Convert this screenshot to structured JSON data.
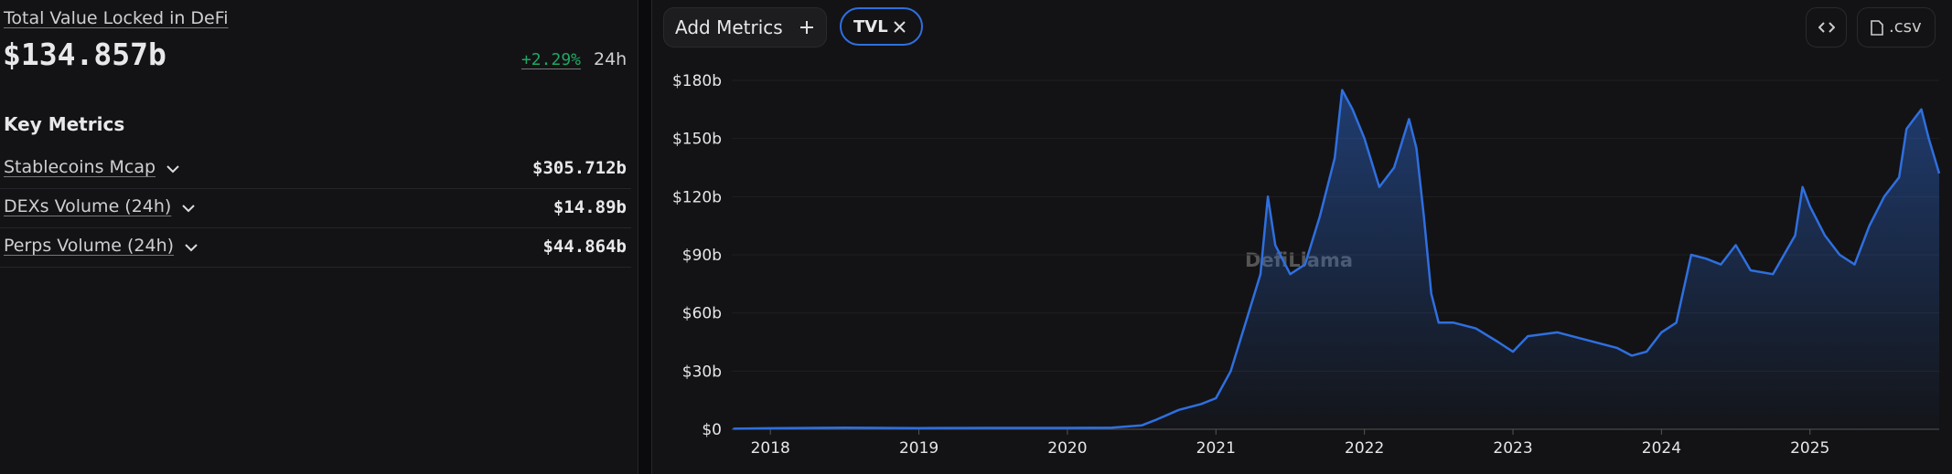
{
  "sidebar": {
    "title": "Total Value Locked in DeFi",
    "value": "$134.857b",
    "change": "+2.29%",
    "period": "24h",
    "section": "Key Metrics",
    "metrics": [
      {
        "name": "Stablecoins Mcap",
        "value": "$305.712b"
      },
      {
        "name": "DEXs Volume (24h)",
        "value": "$14.89b"
      },
      {
        "name": "Perps Volume (24h)",
        "value": "$44.864b"
      }
    ]
  },
  "toolbar": {
    "add_button": "Add Metrics",
    "csv_button": ".csv"
  },
  "chart_data": {
    "type": "area",
    "watermark": "DefiLlama",
    "x": [
      2017.75,
      2018.0,
      2018.5,
      2019.0,
      2019.5,
      2020.0,
      2020.3,
      2020.5,
      2020.6,
      2020.75,
      2020.9,
      2021.0,
      2021.1,
      2021.2,
      2021.3,
      2021.35,
      2021.4,
      2021.5,
      2021.6,
      2021.7,
      2021.8,
      2021.85,
      2021.92,
      2022.0,
      2022.1,
      2022.2,
      2022.3,
      2022.35,
      2022.4,
      2022.45,
      2022.5,
      2022.6,
      2022.75,
      2022.9,
      2023.0,
      2023.1,
      2023.3,
      2023.5,
      2023.7,
      2023.8,
      2023.9,
      2024.0,
      2024.1,
      2024.2,
      2024.3,
      2024.4,
      2024.5,
      2024.6,
      2024.75,
      2024.9,
      2024.95,
      2025.0,
      2025.1,
      2025.2,
      2025.3,
      2025.4,
      2025.5,
      2025.6,
      2025.65,
      2025.7,
      2025.75,
      2025.8,
      2025.87
    ],
    "series": [
      {
        "name": "TVL",
        "color": "#2f6fdf",
        "values": [
          0.3,
          0.5,
          0.8,
          0.6,
          0.7,
          0.7,
          0.8,
          2,
          5,
          10,
          13,
          16,
          30,
          55,
          80,
          120,
          95,
          80,
          85,
          110,
          140,
          175,
          165,
          150,
          125,
          135,
          160,
          145,
          110,
          70,
          55,
          55,
          52,
          45,
          40,
          48,
          50,
          46,
          42,
          38,
          40,
          50,
          55,
          90,
          88,
          85,
          95,
          82,
          80,
          100,
          125,
          115,
          100,
          90,
          85,
          105,
          120,
          130,
          155,
          160,
          165,
          150,
          132
        ]
      }
    ],
    "xlim": [
      2017.74,
      2025.87
    ],
    "xticks": [
      2018,
      2019,
      2020,
      2021,
      2022,
      2023,
      2024,
      2025
    ],
    "ylim": [
      0,
      180
    ],
    "yticks": [
      {
        "value": 0,
        "label": "$0"
      },
      {
        "value": 30,
        "label": "$30b"
      },
      {
        "value": 60,
        "label": "$60b"
      },
      {
        "value": 90,
        "label": "$90b"
      },
      {
        "value": 120,
        "label": "$120b"
      },
      {
        "value": 150,
        "label": "$150b"
      },
      {
        "value": 180,
        "label": "$180b"
      }
    ],
    "grid": true
  }
}
